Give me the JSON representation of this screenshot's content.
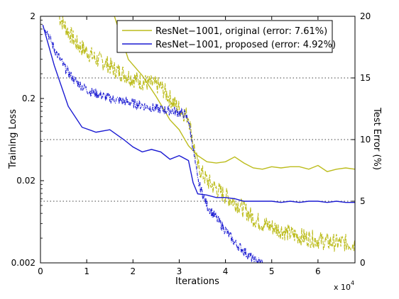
{
  "chart_data": {
    "type": "line",
    "xlabel": "Iterations",
    "x_multiplier_label": "x 10",
    "x_multiplier_exp": "4",
    "ylabel_left": "Training Loss",
    "ylabel_right": "Test Error (%)",
    "xlim": [
      0,
      6.8
    ],
    "xticks": [
      0,
      1,
      2,
      3,
      4,
      5,
      6
    ],
    "ylim_left": [
      0.002,
      2
    ],
    "yscale_left": "log",
    "yticks_left": [
      "2",
      "0.2",
      "0.02",
      "0.002"
    ],
    "ylim_right": [
      0,
      20
    ],
    "yticks_right": [
      "20",
      "15",
      "10",
      "5",
      "0"
    ],
    "grid": "dotted horizontal at right-axis ticks",
    "legend_position": "top-right",
    "colors": {
      "original": "#bcbc1c",
      "proposed": "#1a1ad2"
    },
    "series": [
      {
        "name": "ResNet−1001, original (error: 7.61%)",
        "color": "#bcbc1c",
        "test_error": {
          "x": [
            1.6,
            1.9,
            2.2,
            2.5,
            2.8,
            3.0,
            3.2,
            3.4,
            3.6,
            3.8,
            4.0,
            4.2,
            4.4,
            4.6,
            4.8,
            5.0,
            5.2,
            5.4,
            5.6,
            5.8,
            6.0,
            6.2,
            6.4,
            6.6,
            6.8
          ],
          "y": [
            20.0,
            16.5,
            15.2,
            13.5,
            11.6,
            10.8,
            9.5,
            8.7,
            8.2,
            8.1,
            8.2,
            8.6,
            8.1,
            7.7,
            7.6,
            7.8,
            7.7,
            7.8,
            7.8,
            7.6,
            7.9,
            7.4,
            7.6,
            7.7,
            7.6
          ]
        },
        "training_loss": {
          "x": [
            0.4,
            0.6,
            0.8,
            1.0,
            1.2,
            1.4,
            1.6,
            1.8,
            2.0,
            2.2,
            2.4,
            2.6,
            2.8,
            3.0,
            3.2,
            3.3,
            3.4,
            3.6,
            3.8,
            4.0,
            4.2,
            4.4,
            4.6,
            4.8,
            5.0,
            5.2,
            5.4,
            5.6,
            5.8,
            6.0,
            6.2,
            6.4,
            6.6,
            6.8
          ],
          "y": [
            2.0,
            1.3,
            0.9,
            0.75,
            0.6,
            0.55,
            0.45,
            0.4,
            0.35,
            0.32,
            0.3,
            0.28,
            0.2,
            0.15,
            0.12,
            0.06,
            0.03,
            0.02,
            0.016,
            0.013,
            0.011,
            0.009,
            0.007,
            0.006,
            0.0055,
            0.005,
            0.0045,
            0.0042,
            0.004,
            0.0038,
            0.0036,
            0.0035,
            0.0035,
            0.0034
          ]
        }
      },
      {
        "name": "ResNet−1001, proposed (error: 4.92%)",
        "color": "#1a1ad2",
        "test_error": {
          "x": [
            0.05,
            0.3,
            0.6,
            0.9,
            1.2,
            1.5,
            1.8,
            2.0,
            2.2,
            2.4,
            2.6,
            2.8,
            3.0,
            3.2,
            3.3,
            3.4,
            3.6,
            3.8,
            4.0,
            4.2,
            4.4,
            4.6,
            4.8,
            5.0,
            5.2,
            5.4,
            5.6,
            5.8,
            6.0,
            6.2,
            6.4,
            6.6,
            6.8
          ],
          "y": [
            19.3,
            16.0,
            12.7,
            11.0,
            10.6,
            10.8,
            10.0,
            9.4,
            9.0,
            9.2,
            9.0,
            8.4,
            8.7,
            8.3,
            6.5,
            5.6,
            5.5,
            5.3,
            5.3,
            5.2,
            5.0,
            5.0,
            5.0,
            5.0,
            4.9,
            5.0,
            4.9,
            5.0,
            5.0,
            4.9,
            5.0,
            4.9,
            4.9
          ]
        },
        "training_loss": {
          "x": [
            0.1,
            0.3,
            0.5,
            0.7,
            0.9,
            1.1,
            1.3,
            1.5,
            1.7,
            1.9,
            2.1,
            2.3,
            2.5,
            2.7,
            2.9,
            3.1,
            3.2,
            3.3,
            3.4,
            3.6,
            3.8,
            4.0,
            4.2,
            4.4,
            4.6,
            4.8
          ],
          "y": [
            1.5,
            0.8,
            0.5,
            0.35,
            0.28,
            0.24,
            0.22,
            0.2,
            0.19,
            0.18,
            0.17,
            0.16,
            0.15,
            0.145,
            0.14,
            0.13,
            0.11,
            0.05,
            0.02,
            0.01,
            0.007,
            0.005,
            0.0035,
            0.0028,
            0.0022,
            0.002
          ]
        }
      }
    ]
  }
}
